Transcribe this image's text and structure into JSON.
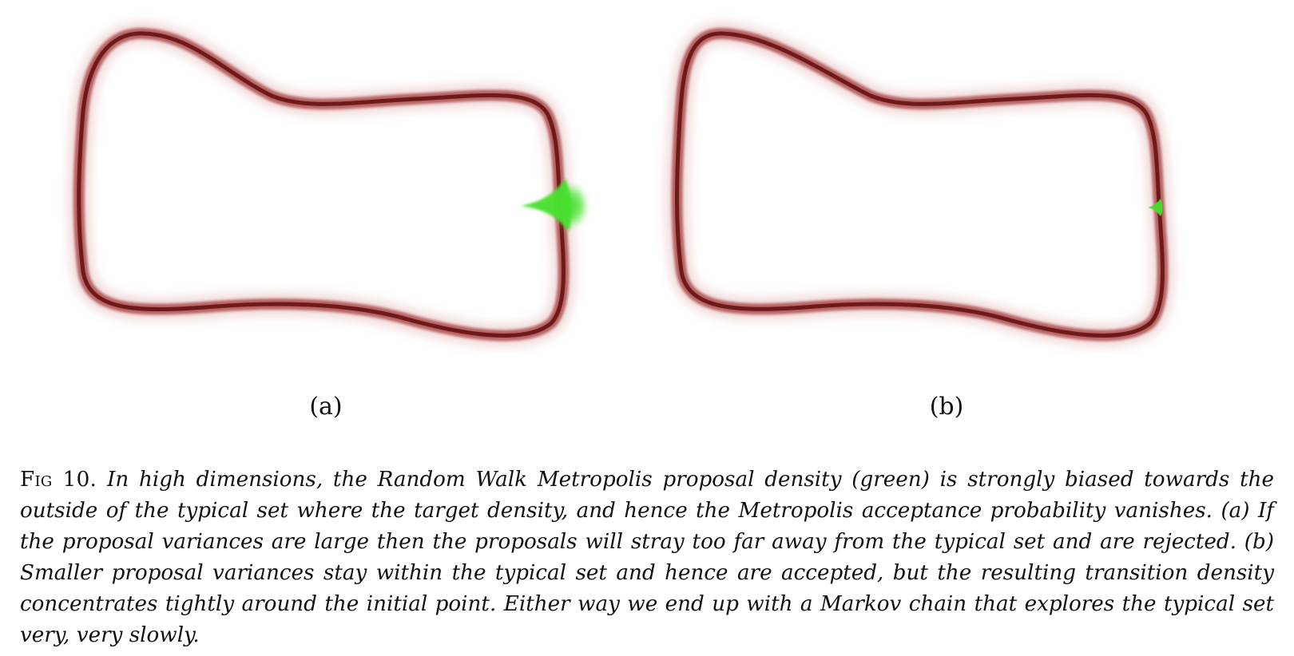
{
  "panels": [
    {
      "label": "(a)",
      "proposal": "large-variance",
      "proposal_color": "#46e02e"
    },
    {
      "label": "(b)",
      "proposal": "small-variance",
      "proposal_color": "#46e02e"
    }
  ],
  "colors": {
    "typical_set": "#7a1e1e",
    "typical_set_glow": "#c96a6a",
    "proposal": "#46e02e",
    "background": "#ffffff",
    "text": "#111111"
  },
  "caption": {
    "lead": "Fig 10.",
    "body": "In high dimensions, the Random Walk Metropolis proposal density (green) is strongly biased towards the outside of the typical set where the target density, and hence the Metropolis acceptance probability vanishes. (a) If the proposal variances are large then the proposals will stray too far away from the typical set and are rejected. (b) Smaller proposal variances stay within the typical set and hence are accepted, but the resulting transition density concentrates tightly around the initial point. Either way we end up with a Markov chain that explores the typical set very, very slowly."
  }
}
